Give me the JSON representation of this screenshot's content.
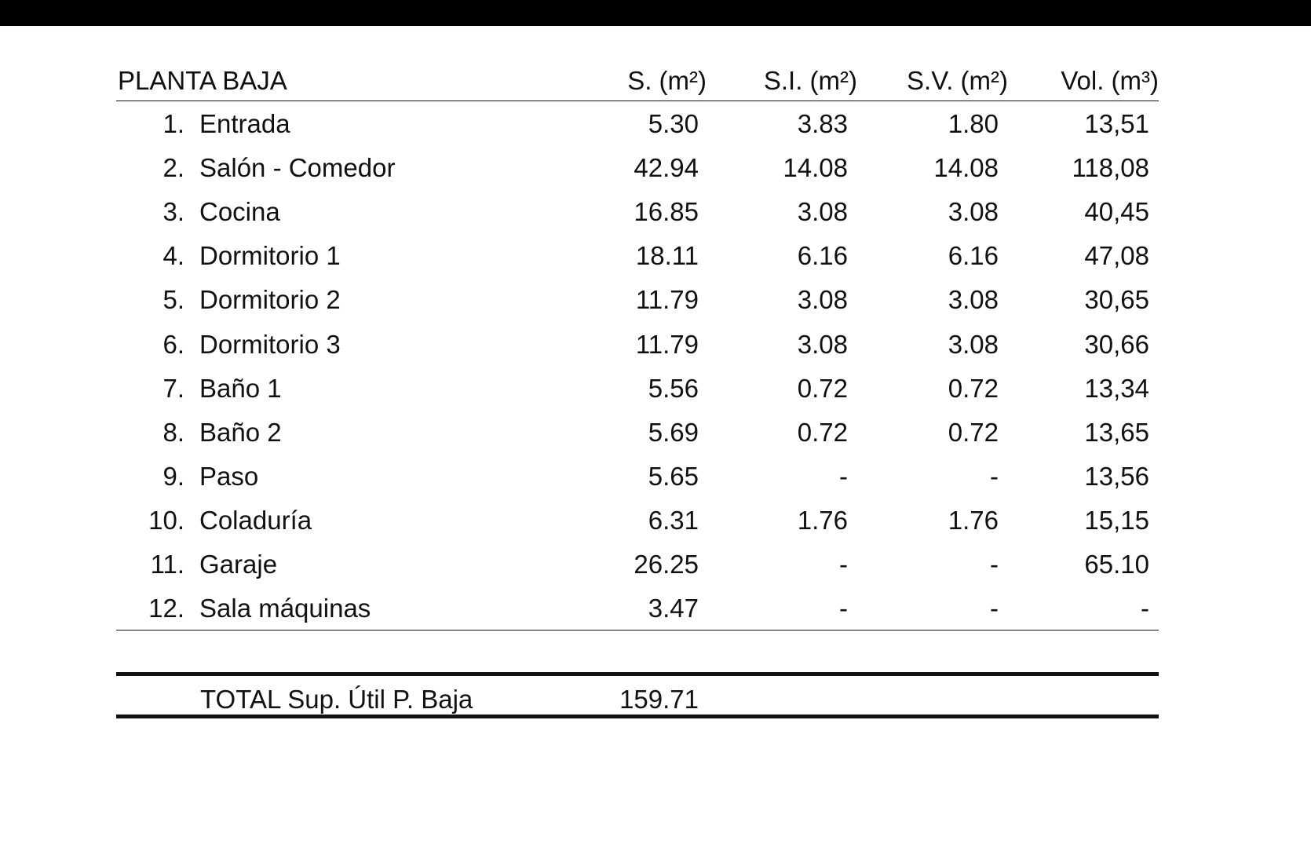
{
  "table": {
    "section_title": "PLANTA BAJA",
    "headers": {
      "s": "S. (m²)",
      "si": "S.I. (m²)",
      "sv": "S.V. (m²)",
      "vol": "Vol. (m³)"
    },
    "rows": [
      {
        "num": "1.",
        "name": "Entrada",
        "s": "5.30",
        "si": "3.83",
        "sv": "1.80",
        "vol": "13,51"
      },
      {
        "num": "2.",
        "name": "Salón - Comedor",
        "s": "42.94",
        "si": "14.08",
        "sv": "14.08",
        "vol": "118,08"
      },
      {
        "num": "3.",
        "name": "Cocina",
        "s": "16.85",
        "si": "3.08",
        "sv": "3.08",
        "vol": "40,45"
      },
      {
        "num": "4.",
        "name": "Dormitorio 1",
        "s": "18.11",
        "si": "6.16",
        "sv": "6.16",
        "vol": "47,08"
      },
      {
        "num": "5.",
        "name": "Dormitorio 2",
        "s": "11.79",
        "si": "3.08",
        "sv": "3.08",
        "vol": "30,65"
      },
      {
        "num": "6.",
        "name": "Dormitorio 3",
        "s": "11.79",
        "si": "3.08",
        "sv": "3.08",
        "vol": "30,66"
      },
      {
        "num": "7.",
        "name": "Baño 1",
        "s": "5.56",
        "si": "0.72",
        "sv": "0.72",
        "vol": "13,34"
      },
      {
        "num": "8.",
        "name": "Baño 2",
        "s": "5.69",
        "si": "0.72",
        "sv": "0.72",
        "vol": "13,65"
      },
      {
        "num": "9.",
        "name": "Paso",
        "s": "5.65",
        "si": "-",
        "sv": "-",
        "vol": "13,56"
      },
      {
        "num": "10.",
        "name": "Coladuría",
        "s": "6.31",
        "si": "1.76",
        "sv": "1.76",
        "vol": "15,15"
      },
      {
        "num": "11.",
        "name": "Garaje",
        "s": "26.25",
        "si": "-",
        "sv": "-",
        "vol": "65.10"
      },
      {
        "num": "12.",
        "name": "Sala máquinas",
        "s": "3.47",
        "si": "-",
        "sv": "-",
        "vol": "-"
      }
    ],
    "total": {
      "label": "TOTAL Sup. Útil P. Baja",
      "value": "159.71"
    }
  }
}
